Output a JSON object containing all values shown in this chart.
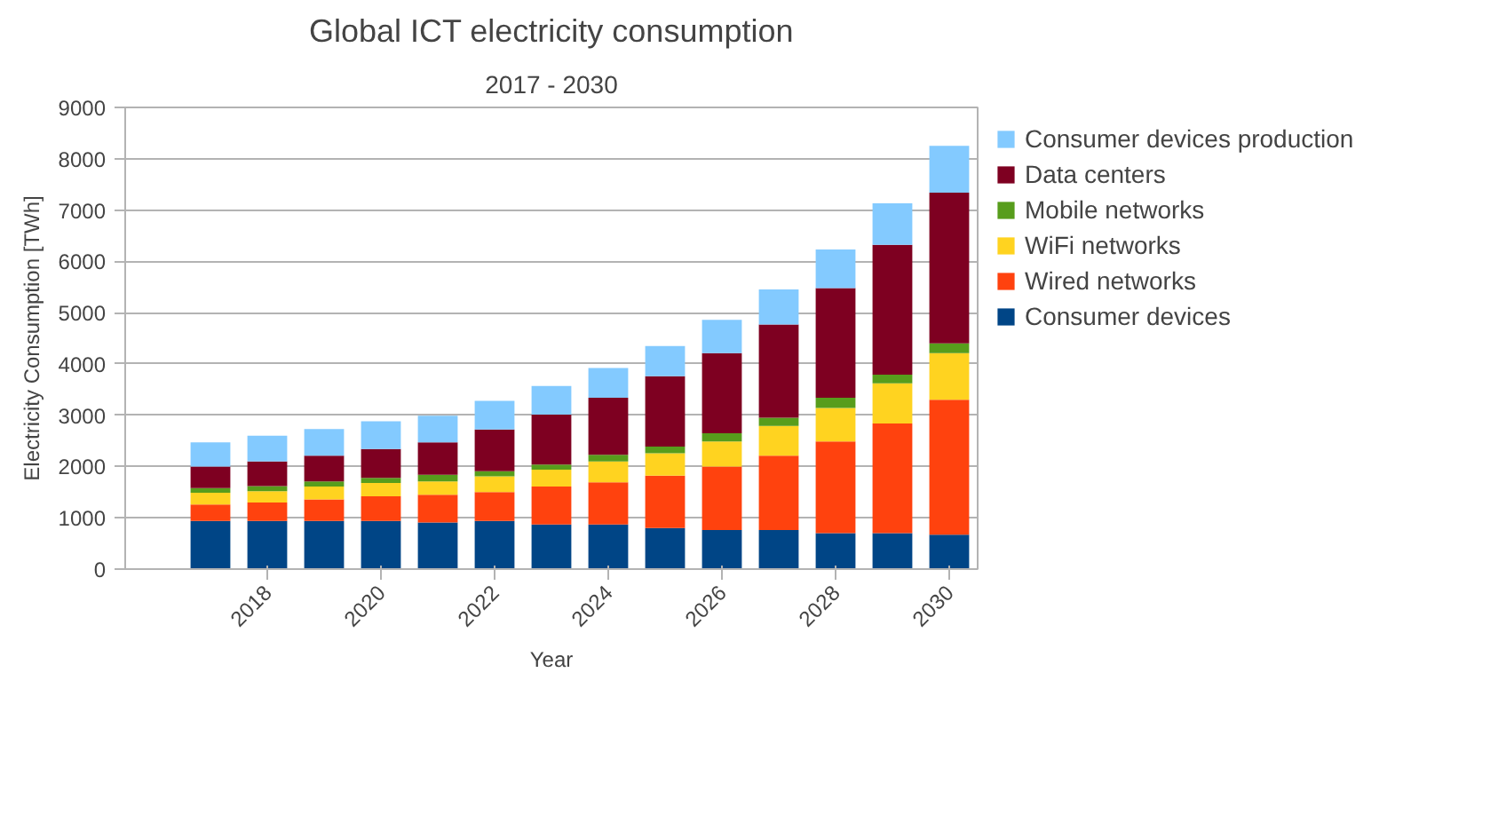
{
  "chart_data": {
    "type": "bar",
    "stacked": true,
    "title": "Global ICT electricity consumption",
    "subtitle": "2017 - 2030",
    "xlabel": "Year",
    "ylabel": "Electricity Consumption [TWh]",
    "x": [
      2017,
      2018,
      2019,
      2020,
      2021,
      2022,
      2023,
      2024,
      2025,
      2026,
      2027,
      2028,
      2029,
      2030
    ],
    "xlim": [
      2015.5,
      2030.5
    ],
    "xticks": [
      2018,
      2020,
      2022,
      2024,
      2026,
      2028,
      2030
    ],
    "ylim": [
      0,
      9000
    ],
    "yticks": [
      0,
      1000,
      2000,
      3000,
      4000,
      5000,
      6000,
      7000,
      8000,
      9000
    ],
    "grid": "y",
    "legend": "right",
    "series": [
      {
        "name": "Consumer devices",
        "color": "#004586",
        "values": [
          940,
          940,
          940,
          940,
          910,
          940,
          870,
          870,
          800,
          760,
          760,
          700,
          700,
          670
        ]
      },
      {
        "name": "Wired networks",
        "color": "#ff420e",
        "values": [
          320,
          360,
          420,
          480,
          540,
          560,
          740,
          820,
          1020,
          1240,
          1450,
          1790,
          2140,
          2630
        ]
      },
      {
        "name": "WiFi networks",
        "color": "#ffd320",
        "values": [
          230,
          220,
          250,
          260,
          260,
          310,
          330,
          410,
          440,
          490,
          580,
          650,
          780,
          910
        ]
      },
      {
        "name": "Mobile networks",
        "color": "#579d1c",
        "values": [
          90,
          100,
          100,
          100,
          130,
          100,
          100,
          130,
          130,
          160,
          160,
          200,
          170,
          190
        ]
      },
      {
        "name": "Data centers",
        "color": "#7e0021",
        "values": [
          420,
          480,
          500,
          560,
          630,
          810,
          970,
          1110,
          1370,
          1560,
          1820,
          2140,
          2530,
          2940
        ]
      },
      {
        "name": "Consumer devices production",
        "color": "#83caff",
        "values": [
          470,
          500,
          520,
          540,
          520,
          560,
          560,
          580,
          590,
          650,
          680,
          750,
          810,
          910
        ]
      }
    ]
  }
}
